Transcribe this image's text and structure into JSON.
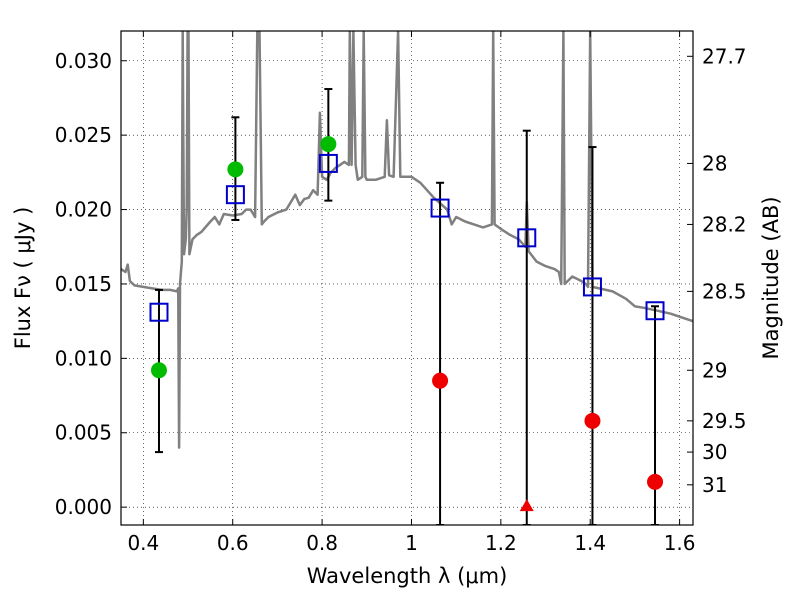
{
  "chart_data": {
    "type": "scatter",
    "xlabel": "Wavelength  λ (μm)",
    "ylabel": "Flux  Fν  ( μJy )",
    "y2label": "Magnitude (AB)",
    "xlim": [
      0.35,
      1.63
    ],
    "ylim": [
      -0.0012,
      0.032
    ],
    "grid": true,
    "x_ticks": [
      0.4,
      0.6,
      0.8,
      1.0,
      1.2,
      1.4,
      1.6
    ],
    "x_tick_labels": [
      "0.4",
      "0.6",
      "0.8",
      "1",
      "1.2",
      "1.4",
      "1.6"
    ],
    "y_ticks": [
      0.0,
      0.005,
      0.01,
      0.015,
      0.02,
      0.025,
      0.03
    ],
    "y_tick_labels": [
      "0.000",
      "0.005",
      "0.010",
      "0.015",
      "0.020",
      "0.025",
      "0.030"
    ],
    "mag_ticks": [
      {
        "label": "27.7",
        "flux": 0.0303
      },
      {
        "label": "28",
        "flux": 0.0231
      },
      {
        "label": "28.2",
        "flux": 0.019
      },
      {
        "label": "28.5",
        "flux": 0.0145
      },
      {
        "label": "29",
        "flux": 0.0092
      },
      {
        "label": "29.5",
        "flux": 0.0058
      },
      {
        "label": "30",
        "flux": 0.0037
      },
      {
        "label": "31",
        "flux": 0.0015
      }
    ],
    "model_spectrum": {
      "color": "#808080",
      "points": [
        [
          0.35,
          0.016
        ],
        [
          0.36,
          0.0158
        ],
        [
          0.365,
          0.0163
        ],
        [
          0.37,
          0.0152
        ],
        [
          0.38,
          0.0149
        ],
        [
          0.4,
          0.0148
        ],
        [
          0.42,
          0.0147
        ],
        [
          0.44,
          0.0146
        ],
        [
          0.46,
          0.0146
        ],
        [
          0.475,
          0.0145
        ],
        [
          0.478,
          0.0147
        ],
        [
          0.48,
          0.004
        ],
        [
          0.482,
          0.015
        ],
        [
          0.486,
          0.0165
        ],
        [
          0.488,
          0.032
        ],
        [
          0.491,
          0.017
        ],
        [
          0.495,
          0.018
        ],
        [
          0.497,
          0.02
        ],
        [
          0.499,
          0.032
        ],
        [
          0.501,
          0.032
        ],
        [
          0.503,
          0.017
        ],
        [
          0.51,
          0.018
        ],
        [
          0.52,
          0.0183
        ],
        [
          0.53,
          0.0185
        ],
        [
          0.55,
          0.0192
        ],
        [
          0.56,
          0.0195
        ],
        [
          0.57,
          0.019
        ],
        [
          0.58,
          0.0197
        ],
        [
          0.6,
          0.0196
        ],
        [
          0.62,
          0.0197
        ],
        [
          0.63,
          0.02
        ],
        [
          0.64,
          0.02
        ],
        [
          0.65,
          0.0195
        ],
        [
          0.655,
          0.032
        ],
        [
          0.66,
          0.032
        ],
        [
          0.665,
          0.019
        ],
        [
          0.67,
          0.0192
        ],
        [
          0.68,
          0.0195
        ],
        [
          0.7,
          0.0198
        ],
        [
          0.72,
          0.02
        ],
        [
          0.73,
          0.0205
        ],
        [
          0.74,
          0.021
        ],
        [
          0.75,
          0.0203
        ],
        [
          0.76,
          0.0207
        ],
        [
          0.77,
          0.0208
        ],
        [
          0.78,
          0.0213
        ],
        [
          0.79,
          0.021
        ],
        [
          0.795,
          0.0265
        ],
        [
          0.8,
          0.0222
        ],
        [
          0.81,
          0.022
        ],
        [
          0.82,
          0.0225
        ],
        [
          0.83,
          0.0228
        ],
        [
          0.84,
          0.023
        ],
        [
          0.85,
          0.0232
        ],
        [
          0.86,
          0.023
        ],
        [
          0.862,
          0.032
        ],
        [
          0.866,
          0.023
        ],
        [
          0.87,
          0.032
        ],
        [
          0.875,
          0.023
        ],
        [
          0.88,
          0.022
        ],
        [
          0.89,
          0.0222
        ],
        [
          0.893,
          0.032
        ],
        [
          0.897,
          0.0222
        ],
        [
          0.9,
          0.022
        ],
        [
          0.92,
          0.022
        ],
        [
          0.94,
          0.0222
        ],
        [
          0.945,
          0.026
        ],
        [
          0.95,
          0.0223
        ],
        [
          0.96,
          0.0222
        ],
        [
          0.97,
          0.032
        ],
        [
          0.975,
          0.0222
        ],
        [
          1.0,
          0.0222
        ],
        [
          1.02,
          0.0218
        ],
        [
          1.05,
          0.0208
        ],
        [
          1.08,
          0.02
        ],
        [
          1.09,
          0.019
        ],
        [
          1.1,
          0.0195
        ],
        [
          1.12,
          0.0192
        ],
        [
          1.14,
          0.019
        ],
        [
          1.16,
          0.0188
        ],
        [
          1.18,
          0.019
        ],
        [
          1.183,
          0.032
        ],
        [
          1.186,
          0.019
        ],
        [
          1.2,
          0.0187
        ],
        [
          1.22,
          0.0183
        ],
        [
          1.24,
          0.018
        ],
        [
          1.255,
          0.0175
        ],
        [
          1.258,
          0.0205
        ],
        [
          1.262,
          0.0172
        ],
        [
          1.28,
          0.0165
        ],
        [
          1.3,
          0.0162
        ],
        [
          1.32,
          0.016
        ],
        [
          1.33,
          0.0158
        ],
        [
          1.335,
          0.015
        ],
        [
          1.34,
          0.032
        ],
        [
          1.343,
          0.015
        ],
        [
          1.36,
          0.0155
        ],
        [
          1.38,
          0.0152
        ],
        [
          1.39,
          0.015
        ],
        [
          1.395,
          0.0148
        ],
        [
          1.4,
          0.032
        ],
        [
          1.405,
          0.0148
        ],
        [
          1.42,
          0.0147
        ],
        [
          1.45,
          0.0145
        ],
        [
          1.48,
          0.014
        ],
        [
          1.5,
          0.0135
        ],
        [
          1.52,
          0.0134
        ],
        [
          1.55,
          0.0132
        ],
        [
          1.58,
          0.013
        ],
        [
          1.6,
          0.0128
        ],
        [
          1.63,
          0.0125
        ]
      ]
    },
    "model_photometry": {
      "color": "#0000cc",
      "points": [
        {
          "x": 0.435,
          "y": 0.0131
        },
        {
          "x": 0.606,
          "y": 0.021
        },
        {
          "x": 0.814,
          "y": 0.0231
        },
        {
          "x": 1.064,
          "y": 0.0201
        },
        {
          "x": 1.258,
          "y": 0.0181
        },
        {
          "x": 1.405,
          "y": 0.0148
        },
        {
          "x": 1.545,
          "y": 0.0132
        }
      ]
    },
    "detections": {
      "color": "#00bb00",
      "points": [
        {
          "x": 0.435,
          "y": 0.0092,
          "ylo": 0.0037,
          "yhi": 0.0146
        },
        {
          "x": 0.606,
          "y": 0.0227,
          "ylo": 0.0193,
          "yhi": 0.0262
        },
        {
          "x": 0.814,
          "y": 0.0244,
          "ylo": 0.0206,
          "yhi": 0.0281
        }
      ]
    },
    "non_detections": {
      "color": "#ee0000",
      "points": [
        {
          "x": 1.064,
          "y": 0.0085,
          "ylo": -0.0012,
          "yhi": 0.0218,
          "marker": "circle"
        },
        {
          "x": 1.258,
          "y": 0.0,
          "ylo": -0.0012,
          "yhi": 0.0253,
          "marker": "triangle"
        },
        {
          "x": 1.405,
          "y": 0.0058,
          "ylo": -0.0012,
          "yhi": 0.0242,
          "marker": "circle"
        },
        {
          "x": 1.545,
          "y": 0.0017,
          "ylo": -0.0012,
          "yhi": 0.0135,
          "marker": "circle"
        }
      ]
    }
  }
}
